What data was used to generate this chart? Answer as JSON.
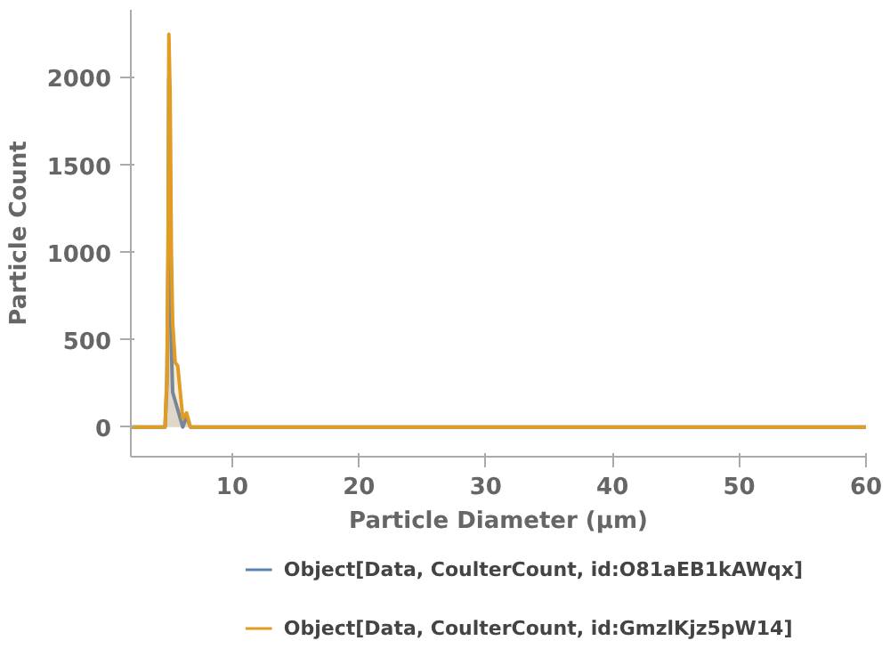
{
  "chart_data": {
    "type": "area",
    "xlabel": "Particle Diameter (µm)",
    "ylabel": "Particle Count",
    "xlim": [
      2,
      60
    ],
    "ylim": [
      -170,
      2390
    ],
    "xticks": [
      10,
      20,
      30,
      40,
      50,
      60
    ],
    "yticks": [
      0,
      500,
      1000,
      1500,
      2000
    ],
    "grid": false,
    "legend": "bottom",
    "series": [
      {
        "name": "Object[Data, CoulterCount, id:O81aEB1kAWqx]",
        "color": "#5e81b5",
        "x": [
          2,
          2.5,
          3,
          3.5,
          4,
          4.5,
          4.7,
          4.85,
          4.95,
          5.0,
          5.1,
          5.2,
          5.3,
          5.5,
          5.7,
          5.9,
          6.1,
          6.4,
          6.7,
          7,
          8,
          10,
          15,
          60
        ],
        "values": [
          0,
          0,
          0,
          0,
          0,
          0,
          0,
          250,
          1000,
          2000,
          1100,
          450,
          200,
          150,
          100,
          50,
          0,
          60,
          0,
          0,
          0,
          0,
          0,
          0
        ]
      },
      {
        "name": "Object[Data, CoulterCount, id:GmzlKjz5pW14]",
        "color": "#e19c24",
        "x": [
          2,
          2.5,
          3,
          3.5,
          4,
          4.5,
          4.7,
          4.85,
          4.95,
          5.0,
          5.1,
          5.2,
          5.3,
          5.5,
          5.7,
          5.9,
          6.1,
          6.4,
          6.7,
          7,
          8,
          10,
          15,
          60
        ],
        "values": [
          0,
          0,
          0,
          0,
          0,
          0,
          0,
          300,
          1200,
          2250,
          1900,
          1000,
          600,
          370,
          350,
          200,
          50,
          80,
          0,
          0,
          0,
          0,
          0,
          0
        ]
      }
    ]
  }
}
